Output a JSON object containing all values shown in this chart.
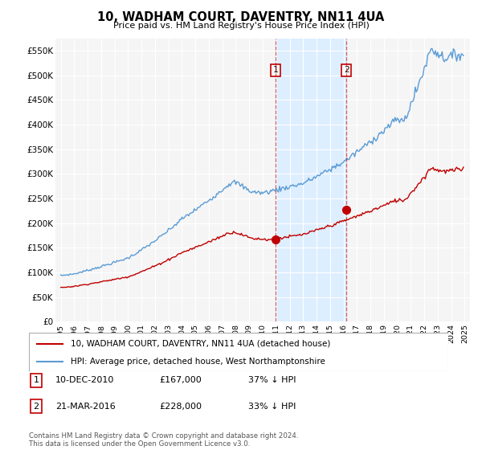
{
  "title": "10, WADHAM COURT, DAVENTRY, NN11 4UA",
  "subtitle": "Price paid vs. HM Land Registry's House Price Index (HPI)",
  "ylabel_ticks": [
    "£0",
    "£50K",
    "£100K",
    "£150K",
    "£200K",
    "£250K",
    "£300K",
    "£350K",
    "£400K",
    "£450K",
    "£500K",
    "£550K"
  ],
  "ytick_values": [
    0,
    50000,
    100000,
    150000,
    200000,
    250000,
    300000,
    350000,
    400000,
    450000,
    500000,
    550000
  ],
  "ylim": [
    0,
    575000
  ],
  "hpi_color": "#5b9bd5",
  "price_color": "#c00000",
  "marker1_date_x": 2010.94,
  "marker2_date_x": 2016.22,
  "marker1_y": 167000,
  "marker2_y": 228000,
  "transaction1": {
    "label": "1",
    "date": "10-DEC-2010",
    "price": "£167,000",
    "hpi": "37% ↓ HPI"
  },
  "transaction2": {
    "label": "2",
    "date": "21-MAR-2016",
    "price": "£228,000",
    "hpi": "33% ↓ HPI"
  },
  "legend_line1": "10, WADHAM COURT, DAVENTRY, NN11 4UA (detached house)",
  "legend_line2": "HPI: Average price, detached house, West Northamptonshire",
  "footnote": "Contains HM Land Registry data © Crown copyright and database right 2024.\nThis data is licensed under the Open Government Licence v3.0.",
  "background_color": "#ffffff",
  "plot_bg_color": "#f5f5f5",
  "grid_color": "#ffffff",
  "shaded_region_color": "#ddeeff",
  "xlim_left": 1994.6,
  "xlim_right": 2025.4
}
